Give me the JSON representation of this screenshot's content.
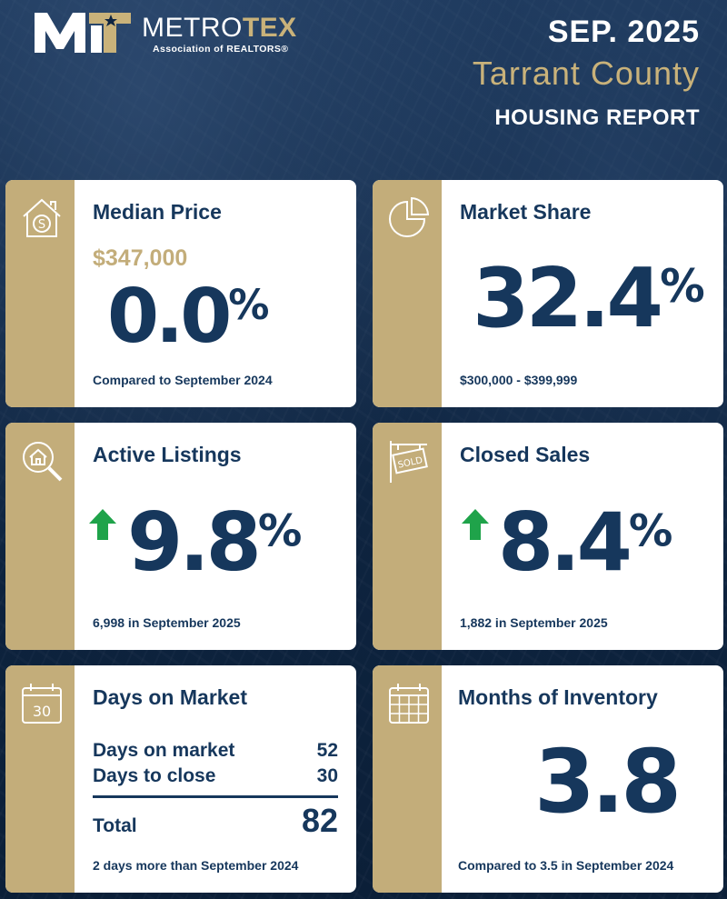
{
  "header": {
    "logo_word_light": "METRO",
    "logo_word_bold": "TEX",
    "logo_sub": "Association of REALTORS®",
    "date": "SEP. 2025",
    "county": "Tarrant County",
    "report": "HOUSING REPORT"
  },
  "colors": {
    "navy": "#16375c",
    "gold": "#c3ad7a",
    "arrow_green": "#1fa34a",
    "background": "#0e2440"
  },
  "median_price": {
    "icon": "house-dollar-icon",
    "title": "Median Price",
    "price": "$347,000",
    "change_value": "0.0",
    "change_unit": "%",
    "footer": "Compared to September 2024"
  },
  "market_share": {
    "icon": "pie-chart-icon",
    "title": "Market Share",
    "value": "32.4",
    "unit": "%",
    "footer": "$300,000 - $399,999"
  },
  "active_listings": {
    "icon": "house-search-icon",
    "title": "Active Listings",
    "trend": "up",
    "value": "9.8",
    "unit": "%",
    "footer": "6,998 in September 2025"
  },
  "closed_sales": {
    "icon": "sold-sign-icon",
    "title": "Closed Sales",
    "trend": "up",
    "value": "8.4",
    "unit": "%",
    "footer": "1,882 in September 2025"
  },
  "days_on_market": {
    "icon": "calendar-30-icon",
    "icon_text": "30",
    "title": "Days on Market",
    "rows": [
      {
        "label": "Days on market",
        "value": "52"
      },
      {
        "label": "Days to close",
        "value": "30"
      }
    ],
    "total_label": "Total",
    "total_value": "82",
    "footer": "2 days more than September 2024"
  },
  "months_inventory": {
    "icon": "calendar-grid-icon",
    "title": "Months of Inventory",
    "value": "3.8",
    "footer": "Compared to 3.5 in September 2024"
  }
}
